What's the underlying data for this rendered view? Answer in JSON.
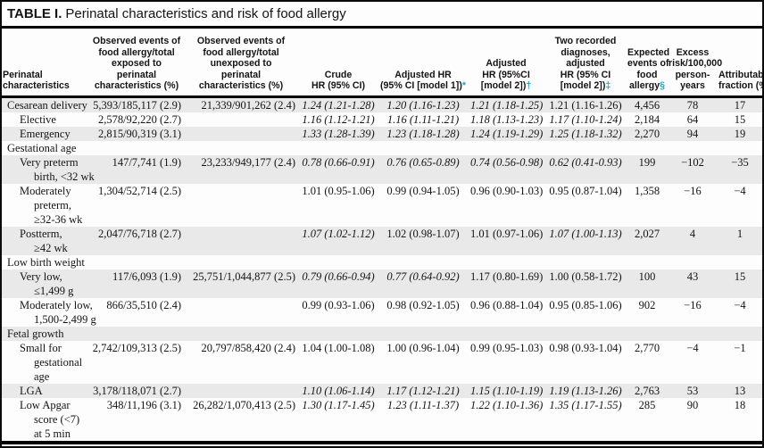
{
  "title": {
    "bold": "TABLE I.",
    "rest": "Perinatal characteristics and risk of food allergy"
  },
  "colors": {
    "accent": "#2b9fc4",
    "shaded_row": "#e9e9e9"
  },
  "header": {
    "columns": [
      {
        "label": "Perinatal characteristics",
        "lines": [
          "Perinatal",
          "characteristics"
        ],
        "align": "left"
      },
      {
        "label": "Observed events of food allergy/total exposed to perinatal characteristics (%)",
        "lines": [
          "Observed events of",
          "food allergy/total",
          "exposed to",
          "perinatal",
          "characteristics (%)"
        ],
        "align": "center"
      },
      {
        "label": "Observed events of food allergy/total unexposed to perinatal characteristics (%)",
        "lines": [
          "Observed events of",
          "food allergy/total",
          "unexposed to",
          "perinatal",
          "characteristics (%)"
        ],
        "align": "center"
      },
      {
        "label": "Crude HR (95% CI)",
        "lines": [
          "Crude",
          "HR (95% CI)"
        ],
        "align": "center"
      },
      {
        "label": "Adjusted HR (95% CI [model 1])*",
        "lines": [
          "Adjusted HR",
          "(95% CI [model 1])"
        ],
        "symbol": "*",
        "align": "center"
      },
      {
        "label": "Adjusted HR (95%CI [model 2])†",
        "lines": [
          "Adjusted",
          "HR (95%CI",
          "[model 2])"
        ],
        "symbol": "†",
        "align": "center"
      },
      {
        "label": "Two recorded diagnoses, adjusted HR (95% CI [model 2])‡",
        "lines": [
          "Two recorded",
          "diagnoses,",
          "adjusted",
          "HR (95% CI",
          "[model 2])"
        ],
        "symbol": "‡",
        "align": "center"
      },
      {
        "label": "Expected events of food allergy§",
        "lines": [
          "Expected",
          "events of",
          "food",
          "allergy"
        ],
        "symbol": "§",
        "align": "center"
      },
      {
        "label": "Excess risk/100,000 person-years",
        "lines": [
          "Excess",
          "risk/100,000",
          "person-",
          "years"
        ],
        "align": "center"
      },
      {
        "label": "Attributable fraction (%)",
        "lines": [
          "Attributable",
          "fraction (%)"
        ],
        "align": "center"
      }
    ]
  },
  "rows": [
    {
      "label_lines": [
        "Cesarean delivery"
      ],
      "indent": 0,
      "section": false,
      "shaded": true,
      "cells": {
        "exposed": "5,393/185,117 (2.9)",
        "unexposed": "21,339/901,262 (2.4)",
        "crude": {
          "text": "1.24 (1.21-1.28)",
          "italic": true
        },
        "adj1": {
          "text": "1.20 (1.16-1.23)",
          "italic": true
        },
        "adj2": {
          "text": "1.21 (1.18-1.25)",
          "italic": true
        },
        "two": {
          "text": "1.21 (1.16-1.26)",
          "italic": false
        },
        "expected": "4,456",
        "excess": "78",
        "attributable": "17"
      }
    },
    {
      "label_lines": [
        "Elective"
      ],
      "indent": 1,
      "section": false,
      "shaded": false,
      "cells": {
        "exposed": "2,578/92,220 (2.7)",
        "unexposed": "",
        "crude": {
          "text": "1.16 (1.12-1.21)",
          "italic": true
        },
        "adj1": {
          "text": "1.16 (1.11-1.21)",
          "italic": true
        },
        "adj2": {
          "text": "1.18 (1.13-1.23)",
          "italic": true
        },
        "two": {
          "text": "1.17 (1.10-1.24)",
          "italic": true
        },
        "expected": "2,184",
        "excess": "64",
        "attributable": "15"
      }
    },
    {
      "label_lines": [
        "Emergency"
      ],
      "indent": 1,
      "section": false,
      "shaded": true,
      "cells": {
        "exposed": "2,815/90,319 (3.1)",
        "unexposed": "",
        "crude": {
          "text": "1.33 (1.28-1.39)",
          "italic": true
        },
        "adj1": {
          "text": "1.23 (1.18-1.28)",
          "italic": true
        },
        "adj2": {
          "text": "1.24 (1.19-1.29)",
          "italic": true
        },
        "two": {
          "text": "1.25 (1.18-1.32)",
          "italic": true
        },
        "expected": "2,270",
        "excess": "94",
        "attributable": "19"
      }
    },
    {
      "label_lines": [
        "Gestational age"
      ],
      "indent": 0,
      "section": true,
      "shaded": false,
      "cells": {
        "exposed": "",
        "unexposed": "",
        "crude": "",
        "adj1": "",
        "adj2": "",
        "two": "",
        "expected": "",
        "excess": "",
        "attributable": ""
      }
    },
    {
      "label_lines": [
        "Very preterm",
        "birth, <32 wk"
      ],
      "indent": 1,
      "section": false,
      "shaded": true,
      "cells": {
        "exposed": "147/7,741 (1.9)",
        "unexposed": "23,233/949,177 (2.4)",
        "crude": {
          "text": "0.78 (0.66-0.91)",
          "italic": true
        },
        "adj1": {
          "text": "0.76 (0.65-0.89)",
          "italic": true
        },
        "adj2": {
          "text": "0.74 (0.56-0.98)",
          "italic": true
        },
        "two": {
          "text": "0.62 (0.41-0.93)",
          "italic": true
        },
        "expected": "199",
        "excess": "−102",
        "attributable": "−35"
      }
    },
    {
      "label_lines": [
        "Moderately",
        "preterm,",
        "≥32-36 wk"
      ],
      "indent": 1,
      "section": false,
      "shaded": false,
      "cells": {
        "exposed": "1,304/52,714 (2.5)",
        "unexposed": "",
        "crude": {
          "text": "1.01 (0.95-1.06)",
          "italic": false
        },
        "adj1": {
          "text": "0.99 (0.94-1.05)",
          "italic": false
        },
        "adj2": {
          "text": "0.96 (0.90-1.03)",
          "italic": false
        },
        "two": {
          "text": "0.95 (0.87-1.04)",
          "italic": false
        },
        "expected": "1,358",
        "excess": "−16",
        "attributable": "−4"
      }
    },
    {
      "label_lines": [
        "Postterm,",
        "≥42 wk"
      ],
      "indent": 1,
      "section": false,
      "shaded": true,
      "cells": {
        "exposed": "2,047/76,718 (2.7)",
        "unexposed": "",
        "crude": {
          "text": "1.07 (1.02-1.12)",
          "italic": true
        },
        "adj1": {
          "text": "1.02 (0.98-1.07)",
          "italic": false
        },
        "adj2": {
          "text": "1.01 (0.97-1.06)",
          "italic": false
        },
        "two": {
          "text": "1.07 (1.00-1.13)",
          "italic": true
        },
        "expected": "2,027",
        "excess": "4",
        "attributable": "1"
      }
    },
    {
      "label_lines": [
        "Low birth weight"
      ],
      "indent": 0,
      "section": true,
      "shaded": false,
      "cells": {
        "exposed": "",
        "unexposed": "",
        "crude": "",
        "adj1": "",
        "adj2": "",
        "two": "",
        "expected": "",
        "excess": "",
        "attributable": ""
      }
    },
    {
      "label_lines": [
        "Very low,",
        "≤1,499 g"
      ],
      "indent": 1,
      "section": false,
      "shaded": true,
      "cells": {
        "exposed": "117/6,093 (1.9)",
        "unexposed": "25,751/1,044,877 (2.5)",
        "crude": {
          "text": "0.79 (0.66-0.94)",
          "italic": true
        },
        "adj1": {
          "text": "0.77 (0.64-0.92)",
          "italic": true
        },
        "adj2": {
          "text": "1.17 (0.80-1.69)",
          "italic": false
        },
        "two": {
          "text": "1.00 (0.58-1.72)",
          "italic": false
        },
        "expected": "100",
        "excess": "43",
        "attributable": "15"
      }
    },
    {
      "label_lines": [
        "Moderately low,",
        "1,500-2,499 g"
      ],
      "indent": 1,
      "section": false,
      "shaded": false,
      "cells": {
        "exposed": "866/35,510 (2.4)",
        "unexposed": "",
        "crude": {
          "text": "0.99 (0.93-1.06)",
          "italic": false
        },
        "adj1": {
          "text": "0.98 (0.92-1.05)",
          "italic": false
        },
        "adj2": {
          "text": "0.96 (0.88-1.04)",
          "italic": false
        },
        "two": {
          "text": "0.95 (0.85-1.06)",
          "italic": false
        },
        "expected": "902",
        "excess": "−16",
        "attributable": "−4"
      }
    },
    {
      "label_lines": [
        "Fetal growth"
      ],
      "indent": 0,
      "section": true,
      "shaded": true,
      "cells": {
        "exposed": "",
        "unexposed": "",
        "crude": "",
        "adj1": "",
        "adj2": "",
        "two": "",
        "expected": "",
        "excess": "",
        "attributable": ""
      }
    },
    {
      "label_lines": [
        "Small for",
        "gestational",
        "age"
      ],
      "indent": 1,
      "section": false,
      "shaded": false,
      "cells": {
        "exposed": "2,742/109,313 (2.5)",
        "unexposed": "20,797/858,420 (2.4)",
        "crude": {
          "text": "1.04 (1.00-1.08)",
          "italic": false
        },
        "adj1": {
          "text": "1.00 (0.96-1.04)",
          "italic": false
        },
        "adj2": {
          "text": "0.99 (0.95-1.03)",
          "italic": false
        },
        "two": {
          "text": "0.98 (0.93-1.04)",
          "italic": false
        },
        "expected": "2,770",
        "excess": "−4",
        "attributable": "−1"
      }
    },
    {
      "label_lines": [
        "LGA"
      ],
      "indent": 1,
      "section": false,
      "shaded": true,
      "cells": {
        "exposed": "3,178/118,071 (2.7)",
        "unexposed": "",
        "crude": {
          "text": "1.10 (1.06-1.14)",
          "italic": true
        },
        "adj1": {
          "text": "1.17 (1.12-1.21)",
          "italic": true
        },
        "adj2": {
          "text": "1.15 (1.10-1.19)",
          "italic": true
        },
        "two": {
          "text": "1.19 (1.13-1.26)",
          "italic": true
        },
        "expected": "2,763",
        "excess": "53",
        "attributable": "13"
      }
    },
    {
      "label_lines": [
        "Low Apgar",
        "score (<7)",
        "at 5 min"
      ],
      "indent": 1,
      "section": false,
      "shaded": false,
      "cells": {
        "exposed": "348/11,196 (3.1)",
        "unexposed": "26,282/1,070,413 (2.5)",
        "crude": {
          "text": "1.30 (1.17-1.45)",
          "italic": true
        },
        "adj1": {
          "text": "1.23 (1.11-1.37)",
          "italic": true
        },
        "adj2": {
          "text": "1.22 (1.10-1.36)",
          "italic": true
        },
        "two": {
          "text": "1.35 (1.17-1.55)",
          "italic": true
        },
        "expected": "285",
        "excess": "90",
        "attributable": "18"
      }
    }
  ]
}
